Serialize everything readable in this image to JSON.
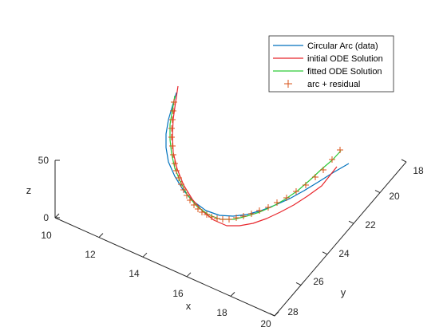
{
  "chart_data": {
    "type": "line",
    "title": "",
    "xlabel": "x",
    "ylabel": "y",
    "zlabel": "z",
    "xlim": [
      10,
      20
    ],
    "ylim": [
      18,
      28
    ],
    "zlim": [
      0,
      50
    ],
    "x_ticks": [
      10,
      12,
      14,
      16,
      18,
      20
    ],
    "y_ticks": [
      18,
      20,
      22,
      24,
      26,
      28
    ],
    "z_ticks": [
      0,
      50
    ],
    "x_tick_labels": [
      "10",
      "12",
      "14",
      "16",
      "18",
      "20"
    ],
    "y_tick_labels": [
      "18",
      "20",
      "22",
      "24",
      "26",
      "28"
    ],
    "z_tick_labels": [
      "0",
      "50"
    ],
    "grid": false,
    "legend_position": "top-right",
    "series": [
      {
        "name": "Circular Arc (data)",
        "style": "line",
        "color": "#0072BD",
        "points": [
          [
            221,
            116
          ],
          [
            216,
            133
          ],
          [
            211,
            150
          ],
          [
            208,
            168
          ],
          [
            208,
            185
          ],
          [
            211,
            203
          ],
          [
            219,
            221
          ],
          [
            230,
            239
          ],
          [
            243,
            253
          ],
          [
            258,
            264
          ],
          [
            275,
            270
          ],
          [
            292,
            271
          ],
          [
            309,
            269
          ],
          [
            327,
            264
          ],
          [
            345,
            257
          ],
          [
            363,
            249
          ],
          [
            381,
            239
          ],
          [
            399,
            228
          ],
          [
            418,
            216
          ],
          [
            437,
            205
          ]
        ]
      },
      {
        "name": "initial ODE Solution",
        "style": "line",
        "color": "#E8262C",
        "points": [
          [
            223,
            108
          ],
          [
            220,
            128
          ],
          [
            217,
            149
          ],
          [
            216,
            170
          ],
          [
            217,
            191
          ],
          [
            222,
            212
          ],
          [
            230,
            232
          ],
          [
            241,
            250
          ],
          [
            254,
            265
          ],
          [
            268,
            276
          ],
          [
            284,
            283
          ],
          [
            300,
            283
          ],
          [
            317,
            280
          ],
          [
            334,
            274
          ],
          [
            351,
            266
          ],
          [
            368,
            257
          ],
          [
            385,
            246
          ],
          [
            403,
            233
          ],
          [
            422,
            209
          ]
        ]
      },
      {
        "name": "fitted ODE Solution",
        "style": "line",
        "color": "#2DC937",
        "points": [
          [
            219,
            120
          ],
          [
            216,
            138
          ],
          [
            213,
            156
          ],
          [
            213,
            175
          ],
          [
            215,
            193
          ],
          [
            219,
            211
          ],
          [
            226,
            228
          ],
          [
            235,
            245
          ],
          [
            247,
            259
          ],
          [
            261,
            269
          ],
          [
            276,
            275
          ],
          [
            293,
            275
          ],
          [
            309,
            271
          ],
          [
            325,
            266
          ],
          [
            341,
            259
          ],
          [
            357,
            250
          ],
          [
            373,
            239
          ],
          [
            388,
            226
          ],
          [
            403,
            212
          ],
          [
            417,
            200
          ],
          [
            427,
            189
          ]
        ]
      },
      {
        "name": "arc + residual",
        "style": "marker-plus",
        "color": "#D95319",
        "points": [
          [
            218,
            128
          ],
          [
            217,
            139
          ],
          [
            216,
            150
          ],
          [
            215,
            161
          ],
          [
            215,
            172
          ],
          [
            216,
            183
          ],
          [
            217,
            194
          ],
          [
            219,
            205
          ],
          [
            221,
            214
          ],
          [
            224,
            223
          ],
          [
            227,
            231
          ],
          [
            230,
            238
          ],
          [
            234,
            245
          ],
          [
            238,
            251
          ],
          [
            243,
            257
          ],
          [
            248,
            262
          ],
          [
            253,
            266
          ],
          [
            259,
            269
          ],
          [
            265,
            272
          ],
          [
            272,
            274
          ],
          [
            279,
            275
          ],
          [
            287,
            275
          ],
          [
            296,
            273
          ],
          [
            305,
            271
          ],
          [
            315,
            268
          ],
          [
            325,
            264
          ],
          [
            336,
            260
          ],
          [
            347,
            254
          ],
          [
            359,
            248
          ],
          [
            371,
            240
          ],
          [
            383,
            232
          ],
          [
            395,
            222
          ],
          [
            405,
            213
          ],
          [
            416,
            200
          ],
          [
            426,
            188
          ]
        ]
      }
    ],
    "colors": {
      "axis": "#262626",
      "background": "#ffffff"
    }
  }
}
